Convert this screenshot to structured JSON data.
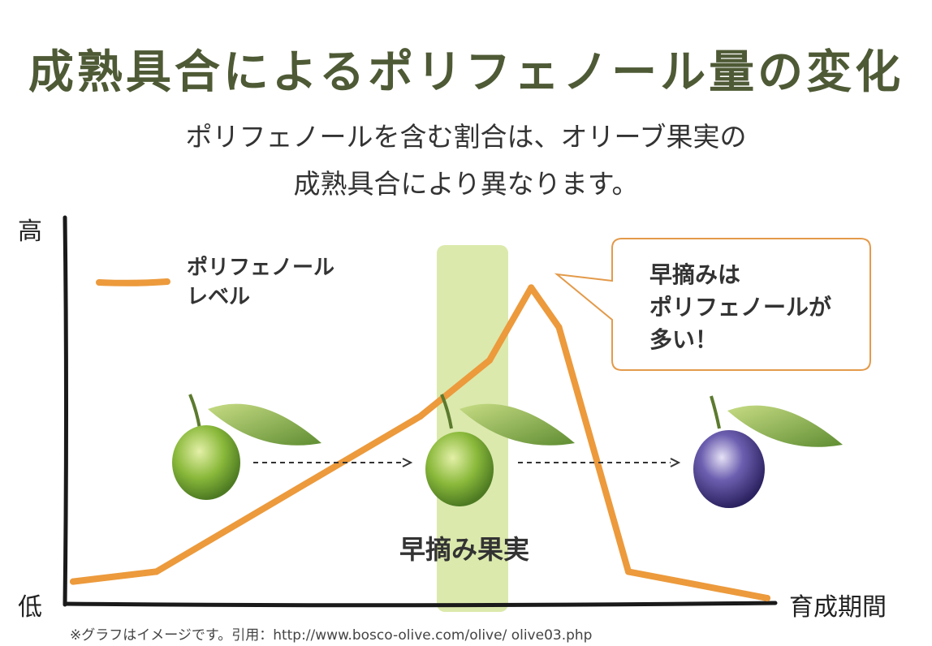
{
  "header": {
    "title": "成熟具合によるポリフェノール量の変化",
    "subtitle_line1": "ポリフェノールを含む割合は、オリーブ果実の",
    "subtitle_line2": "成熟具合により異なります。"
  },
  "chart_data": {
    "type": "line",
    "title": "成熟具合によるポリフェノール量の変化",
    "y_axis": {
      "high_label": "高",
      "low_label": "低"
    },
    "x_axis": {
      "label": "育成期間"
    },
    "legend": {
      "placement": "top-left",
      "line1": "ポリフェノール",
      "line2": "レベル"
    },
    "grid": false,
    "series": [
      {
        "name": "ポリフェノールレベル",
        "color": "#ec9a3c",
        "x": [
          0,
          0.12,
          0.5,
          0.6,
          0.66,
          0.7,
          0.8,
          0.9,
          1.0
        ],
        "y": [
          0.05,
          0.08,
          0.55,
          0.72,
          0.94,
          0.82,
          0.08,
          0.04,
          0.0
        ]
      }
    ],
    "highlight": {
      "label": "早摘み果実",
      "color": "#cfe190"
    },
    "callout": {
      "line1": "早摘みは",
      "line2": "ポリフェノールが",
      "line3": "多い！"
    },
    "olives": [
      {
        "stage": "green",
        "color": "#8ab93b"
      },
      {
        "stage": "green",
        "color": "#8ab93b"
      },
      {
        "stage": "ripe",
        "color": "#4b3d8f"
      }
    ]
  },
  "citation": "※グラフはイメージです。引用：http://www.bosco-olive.com/olive/ olive03.php"
}
